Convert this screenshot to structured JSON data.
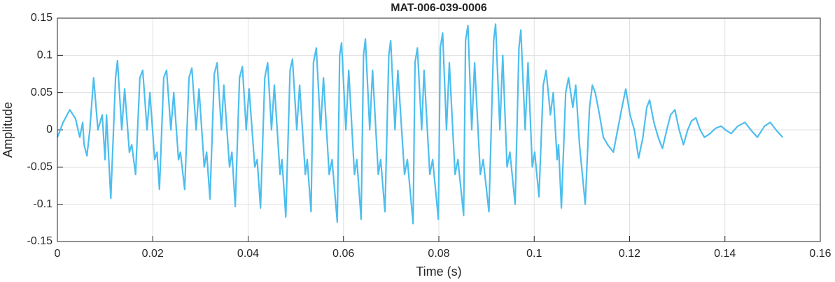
{
  "chart_data": {
    "type": "line",
    "title": "MAT-006-039-0006",
    "x_label": "Time (s)",
    "y_label": "Amplitude",
    "color": "#4DBEEE",
    "grid": true,
    "xlim": [
      0,
      0.16
    ],
    "xticks": [
      0,
      0.02,
      0.04,
      0.06,
      0.08,
      0.1,
      0.12,
      0.14,
      0.16
    ],
    "ylim": [
      -0.15,
      0.15
    ],
    "yticks": [
      -0.15,
      -0.1,
      -0.05,
      0,
      0.05,
      0.1,
      0.15
    ],
    "x": [
      0,
      0.0012,
      0.0026,
      0.0038,
      0.0047,
      0.0053,
      0.0056,
      0.0062,
      0.0068,
      0.0076,
      0.0085,
      0.0094,
      0.01,
      0.0103,
      0.0112,
      0.0122,
      0.0126,
      0.0135,
      0.0141,
      0.0151,
      0.0156,
      0.0164,
      0.0173,
      0.0179,
      0.0188,
      0.0194,
      0.0204,
      0.0209,
      0.0214,
      0.0223,
      0.0229,
      0.0238,
      0.0244,
      0.0254,
      0.0258,
      0.0267,
      0.0276,
      0.0282,
      0.0291,
      0.0297,
      0.0308,
      0.0313,
      0.032,
      0.0329,
      0.0335,
      0.0344,
      0.0349,
      0.0361,
      0.0366,
      0.0373,
      0.0382,
      0.0388,
      0.0396,
      0.0402,
      0.0414,
      0.0419,
      0.0426,
      0.0435,
      0.0441,
      0.0449,
      0.0455,
      0.0467,
      0.0471,
      0.0479,
      0.0488,
      0.0493,
      0.0502,
      0.0508,
      0.052,
      0.0524,
      0.0532,
      0.0537,
      0.0543,
      0.0552,
      0.0558,
      0.057,
      0.0576,
      0.0587,
      0.0592,
      0.0596,
      0.0605,
      0.0611,
      0.0623,
      0.0628,
      0.0637,
      0.0642,
      0.0646,
      0.0655,
      0.0661,
      0.0673,
      0.0678,
      0.0687,
      0.0695,
      0.0699,
      0.0708,
      0.0714,
      0.0728,
      0.0734,
      0.0746,
      0.075,
      0.0755,
      0.0764,
      0.0769,
      0.0781,
      0.0787,
      0.0799,
      0.0803,
      0.0808,
      0.0816,
      0.0822,
      0.0834,
      0.084,
      0.0852,
      0.0856,
      0.0861,
      0.0869,
      0.0875,
      0.0887,
      0.0893,
      0.0905,
      0.0915,
      0.0919,
      0.0928,
      0.0934,
      0.0943,
      0.0949,
      0.096,
      0.0968,
      0.0972,
      0.0981,
      0.0987,
      0.0996,
      0.1001,
      0.101,
      0.1019,
      0.1025,
      0.1034,
      0.104,
      0.1048,
      0.1051,
      0.1057,
      0.1066,
      0.1072,
      0.1081,
      0.1087,
      0.1095,
      0.1098,
      0.1107,
      0.1116,
      0.1122,
      0.1128,
      0.1137,
      0.1145,
      0.1154,
      0.1166,
      0.1175,
      0.1184,
      0.1192,
      0.1201,
      0.121,
      0.1219,
      0.1228,
      0.1236,
      0.1242,
      0.1251,
      0.126,
      0.1269,
      0.1278,
      0.1286,
      0.1295,
      0.1304,
      0.1313,
      0.1322,
      0.133,
      0.1339,
      0.1348,
      0.1357,
      0.1369,
      0.138,
      0.1392,
      0.1401,
      0.1413,
      0.1427,
      0.1442,
      0.1454,
      0.1468,
      0.1483,
      0.1495,
      0.1507,
      0.1521
    ],
    "values": [
      -0.01,
      0.01,
      0.027,
      0.015,
      -0.01,
      0.01,
      -0.02,
      -0.035,
      0,
      0.07,
      0,
      0.02,
      -0.04,
      0.02,
      -0.092,
      0.07,
      0.093,
      0,
      0.055,
      -0.03,
      -0.02,
      -0.06,
      0.07,
      0.08,
      0,
      0.05,
      -0.04,
      -0.03,
      -0.08,
      0.07,
      0.08,
      0,
      0.05,
      -0.04,
      -0.03,
      -0.08,
      0.07,
      0.083,
      0,
      0.055,
      -0.05,
      -0.03,
      -0.093,
      0.075,
      0.09,
      0,
      0.06,
      -0.05,
      -0.03,
      -0.103,
      0.07,
      0.085,
      0,
      0.055,
      -0.05,
      -0.04,
      -0.105,
      0.07,
      0.09,
      0,
      0.06,
      -0.06,
      -0.04,
      -0.117,
      0.08,
      0.095,
      0,
      0.06,
      -0.06,
      -0.04,
      -0.11,
      0.09,
      0.11,
      0,
      0.07,
      -0.06,
      -0.04,
      -0.124,
      0.1,
      0.117,
      0,
      0.08,
      -0.06,
      -0.04,
      -0.12,
      0.1,
      0.122,
      0,
      0.08,
      -0.06,
      -0.04,
      -0.11,
      0.1,
      0.12,
      0,
      0.08,
      -0.06,
      -0.04,
      -0.126,
      0.09,
      0.11,
      0,
      0.08,
      -0.06,
      -0.04,
      -0.12,
      0.11,
      0.13,
      0,
      0.09,
      -0.06,
      -0.04,
      -0.115,
      0.12,
      0.14,
      0,
      0.09,
      -0.06,
      -0.04,
      -0.11,
      0.12,
      0.142,
      0,
      0.1,
      -0.05,
      -0.03,
      -0.1,
      0.11,
      0.134,
      0,
      0.09,
      -0.05,
      -0.03,
      -0.09,
      0.06,
      0.08,
      0.02,
      0.05,
      -0.04,
      -0.02,
      -0.105,
      0.05,
      0.07,
      0.03,
      0.06,
      -0.02,
      -0.04,
      -0.1,
      0.03,
      0.06,
      0.05,
      0.02,
      -0.01,
      -0.02,
      -0.03,
      0,
      0.03,
      0.055,
      0.02,
      0,
      -0.038,
      -0.01,
      0.03,
      0.04,
      0.01,
      -0.01,
      -0.025,
      0,
      0.02,
      0.027,
      0,
      -0.02,
      0,
      0.012,
      0.016,
      0,
      -0.01,
      -0.005,
      0.002,
      0.005,
      0,
      -0.005,
      0.005,
      0.01,
      0,
      -0.01,
      0.005,
      0.01,
      0,
      -0.01
    ]
  }
}
